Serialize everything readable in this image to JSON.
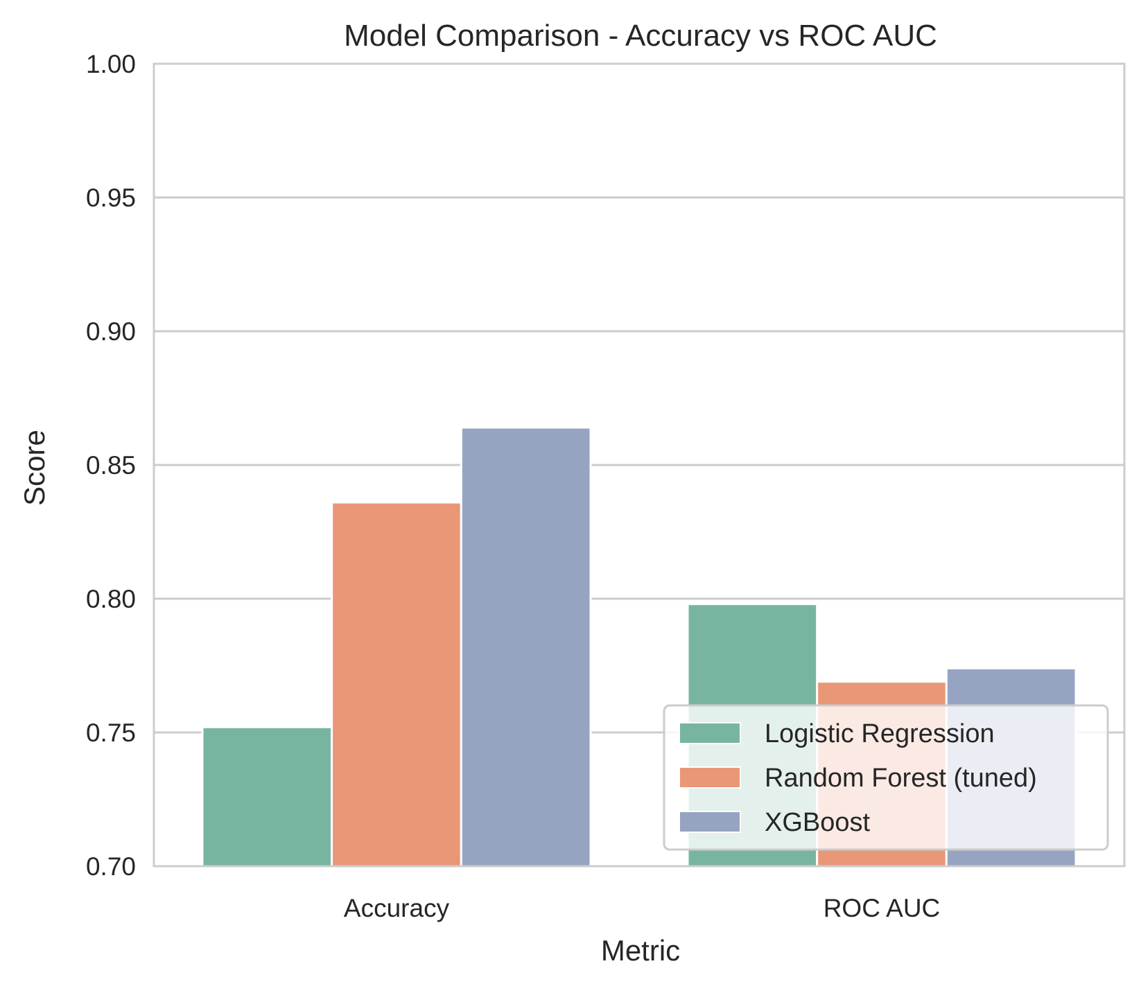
{
  "chart_data": {
    "type": "bar",
    "title": "Model Comparison - Accuracy vs ROC AUC",
    "xlabel": "Metric",
    "ylabel": "Score",
    "categories": [
      "Accuracy",
      "ROC AUC"
    ],
    "ylim": [
      0.7,
      1.0
    ],
    "yticks": [
      "0.70",
      "0.75",
      "0.80",
      "0.85",
      "0.90",
      "0.95",
      "1.00"
    ],
    "grid": true,
    "legend_position": "lower-right",
    "series": [
      {
        "name": "Logistic Regression",
        "color": "#77b5a0",
        "values": [
          0.752,
          0.798
        ]
      },
      {
        "name": "Random Forest (tuned)",
        "color": "#e99777",
        "values": [
          0.836,
          0.769
        ]
      },
      {
        "name": "XGBoost",
        "color": "#96a4c2",
        "values": [
          0.864,
          0.774
        ]
      }
    ]
  }
}
